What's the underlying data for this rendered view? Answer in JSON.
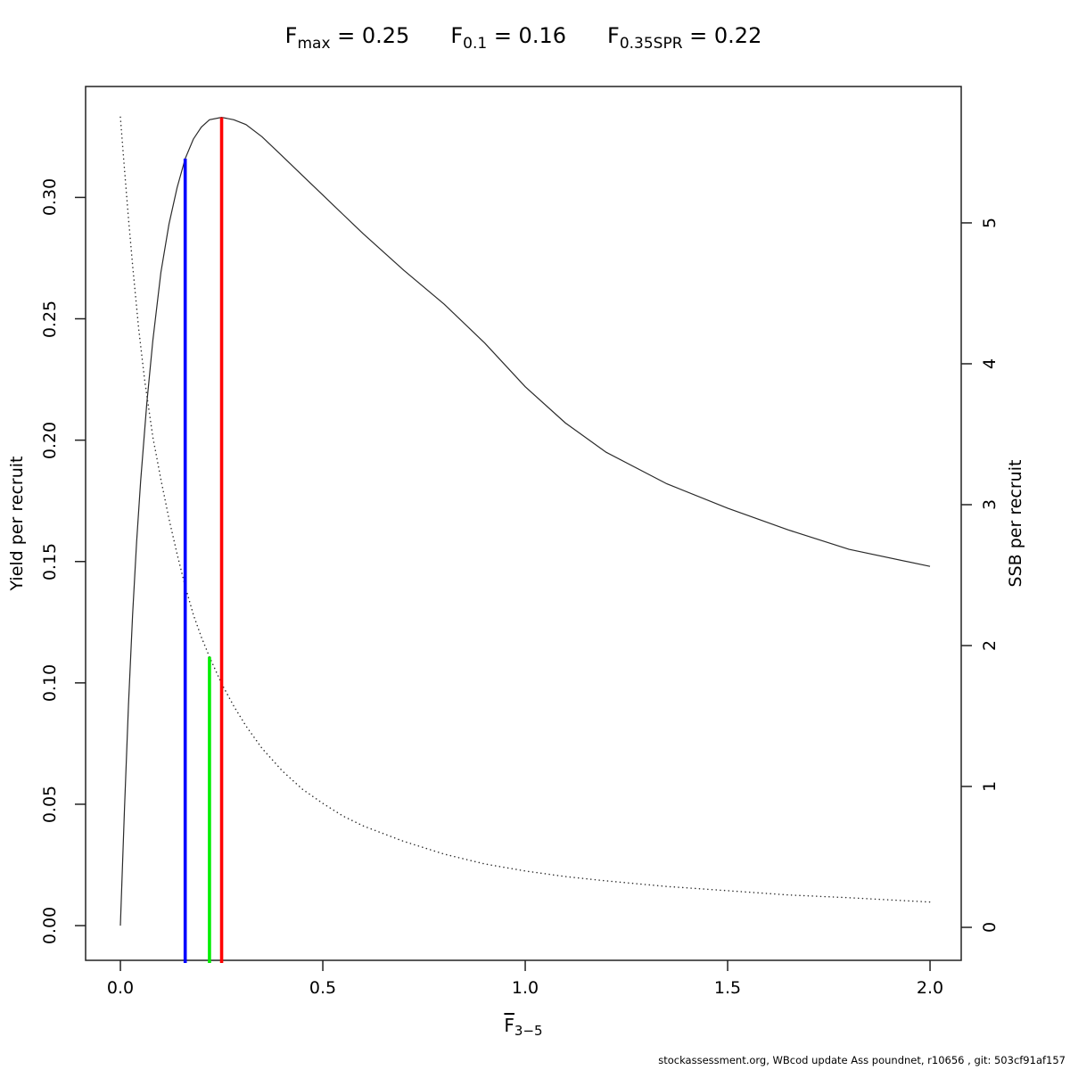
{
  "title": {
    "items": [
      {
        "base": "F",
        "sub": "max",
        "rest": " = 0.25"
      },
      {
        "base": "F",
        "sub": "0.1",
        "rest": " = 0.16"
      },
      {
        "base": "F",
        "sub": "0.35SPR",
        "rest": " = 0.22"
      }
    ]
  },
  "footer": "stockassessment.org, WBcod update Ass poundnet, r10656 , git: 503cf91af157",
  "chart_data": {
    "type": "line",
    "title": "Fmax = 0.25   F0.1 = 0.16   F0.35SPR = 0.22",
    "xlabel": "F̄3−5",
    "xlabel_base": "F",
    "xlabel_sub": "3−5",
    "grid": false,
    "legend": "none",
    "axes": {
      "x": {
        "range": [
          -0.086,
          2.077
        ],
        "ticks": [
          {
            "v": 0.0,
            "label": "0.0"
          },
          {
            "v": 0.5,
            "label": "0.5"
          },
          {
            "v": 1.0,
            "label": "1.0"
          },
          {
            "v": 1.5,
            "label": "1.5"
          },
          {
            "v": 2.0,
            "label": "2.0"
          }
        ]
      },
      "y_left": {
        "label": "Yield per recruit",
        "range": [
          -0.0143,
          0.3457
        ],
        "ticks": [
          {
            "v": 0.0,
            "label": "0.00"
          },
          {
            "v": 0.05,
            "label": "0.05"
          },
          {
            "v": 0.1,
            "label": "0.10"
          },
          {
            "v": 0.15,
            "label": "0.15"
          },
          {
            "v": 0.2,
            "label": "0.20"
          },
          {
            "v": 0.25,
            "label": "0.25"
          },
          {
            "v": 0.3,
            "label": "0.30"
          }
        ]
      },
      "y_right": {
        "label": "SSB per recruit",
        "range": [
          -0.234,
          5.968
        ],
        "ticks": [
          {
            "v": 0,
            "label": "0"
          },
          {
            "v": 1,
            "label": "1"
          },
          {
            "v": 2,
            "label": "2"
          },
          {
            "v": 3,
            "label": "3"
          },
          {
            "v": 4,
            "label": "4"
          },
          {
            "v": 5,
            "label": "5"
          }
        ]
      }
    },
    "series": [
      {
        "name": "yield-per-recruit-curve",
        "axis": "left",
        "style": "solid",
        "color": "#2a2a2a",
        "points": [
          [
            0.0,
            0.0
          ],
          [
            0.01,
            0.048
          ],
          [
            0.02,
            0.091
          ],
          [
            0.03,
            0.128
          ],
          [
            0.04,
            0.158
          ],
          [
            0.05,
            0.183
          ],
          [
            0.065,
            0.215
          ],
          [
            0.08,
            0.241
          ],
          [
            0.1,
            0.269
          ],
          [
            0.12,
            0.289
          ],
          [
            0.14,
            0.304
          ],
          [
            0.16,
            0.316
          ],
          [
            0.18,
            0.324
          ],
          [
            0.2,
            0.329
          ],
          [
            0.22,
            0.332
          ],
          [
            0.25,
            0.333
          ],
          [
            0.28,
            0.332
          ],
          [
            0.31,
            0.33
          ],
          [
            0.35,
            0.325
          ],
          [
            0.4,
            0.317
          ],
          [
            0.45,
            0.309
          ],
          [
            0.5,
            0.301
          ],
          [
            0.55,
            0.293
          ],
          [
            0.6,
            0.285
          ],
          [
            0.7,
            0.27
          ],
          [
            0.8,
            0.256
          ],
          [
            0.9,
            0.24
          ],
          [
            1.0,
            0.222
          ],
          [
            1.1,
            0.207
          ],
          [
            1.2,
            0.195
          ],
          [
            1.35,
            0.182
          ],
          [
            1.5,
            0.172
          ],
          [
            1.65,
            0.163
          ],
          [
            1.8,
            0.155
          ],
          [
            2.0,
            0.148
          ]
        ]
      },
      {
        "name": "ssb-per-recruit-curve",
        "axis": "right",
        "style": "dotted",
        "color": "#2a2a2a",
        "points": [
          [
            0.0,
            5.75
          ],
          [
            0.01,
            5.38
          ],
          [
            0.02,
            5.03
          ],
          [
            0.03,
            4.7
          ],
          [
            0.045,
            4.25
          ],
          [
            0.06,
            3.88
          ],
          [
            0.08,
            3.48
          ],
          [
            0.1,
            3.18
          ],
          [
            0.12,
            2.9
          ],
          [
            0.14,
            2.65
          ],
          [
            0.16,
            2.42
          ],
          [
            0.18,
            2.22
          ],
          [
            0.2,
            2.06
          ],
          [
            0.22,
            1.92
          ],
          [
            0.25,
            1.73
          ],
          [
            0.28,
            1.57
          ],
          [
            0.31,
            1.43
          ],
          [
            0.35,
            1.27
          ],
          [
            0.4,
            1.11
          ],
          [
            0.45,
            0.98
          ],
          [
            0.5,
            0.88
          ],
          [
            0.55,
            0.79
          ],
          [
            0.6,
            0.72
          ],
          [
            0.7,
            0.61
          ],
          [
            0.8,
            0.52
          ],
          [
            0.9,
            0.45
          ],
          [
            1.0,
            0.4
          ],
          [
            1.1,
            0.36
          ],
          [
            1.2,
            0.33
          ],
          [
            1.35,
            0.29
          ],
          [
            1.5,
            0.26
          ],
          [
            1.65,
            0.23
          ],
          [
            1.8,
            0.21
          ],
          [
            2.0,
            0.18
          ]
        ]
      }
    ],
    "ref_lines": [
      {
        "name": "F0.1-line",
        "x": 0.16,
        "y_top": 0.316,
        "axis": "left",
        "color": "#0000ff"
      },
      {
        "name": "F0.35SPR-line",
        "x": 0.22,
        "y_top": 1.92,
        "axis": "right",
        "color": "#00ee00"
      },
      {
        "name": "Fmax-line",
        "x": 0.25,
        "y_top": 0.333,
        "axis": "left",
        "color": "#ff0000"
      }
    ]
  }
}
